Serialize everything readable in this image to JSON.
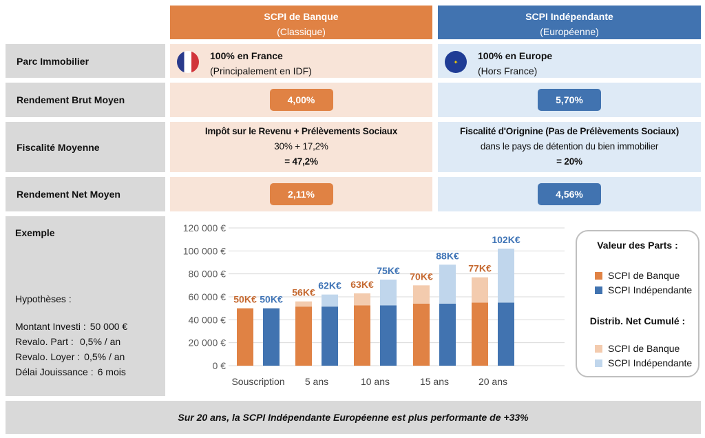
{
  "columns": [
    {
      "title": "SCPI de Banque",
      "subtitle": "(Classique)"
    },
    {
      "title": "SCPI Indépendante",
      "subtitle": "(Européenne)"
    }
  ],
  "rows": {
    "parc": {
      "label": "Parc Immobilier",
      "banque": {
        "line1": "100% en France",
        "line2": "(Principalement en IDF)",
        "icon": "france-flag-icon"
      },
      "indep": {
        "line1": "100% en Europe",
        "line2": "(Hors France)",
        "icon": "eu-flag-icon"
      }
    },
    "brut": {
      "label": "Rendement Brut Moyen",
      "banque": "4,00%",
      "indep": "5,70%"
    },
    "fisc": {
      "label": "Fiscalité Moyenne",
      "banque": {
        "line1": "Impôt sur le Revenu + Prélèvements Sociaux",
        "line2": "30% + 17,2%",
        "line3": "= 47,2%"
      },
      "indep": {
        "line1": "Fiscalité d'Orignine (Pas de Prélèvements Sociaux)",
        "line2": "dans le pays de détention du bien immobilier",
        "line3": "= 20%"
      }
    },
    "net": {
      "label": "Rendement Net Moyen",
      "banque": "2,11%",
      "indep": "4,56%"
    }
  },
  "example": {
    "label": "Exemple",
    "hyp_title": "Hypothèses :",
    "hyps": [
      {
        "k": "Montant Investi :",
        "v": "50 000 €"
      },
      {
        "k": "Revalo. Part :",
        "v": "0,5% / an"
      },
      {
        "k": "Revalo. Loyer :",
        "v": "0,5% / an"
      },
      {
        "k": "Délai Jouissance :",
        "v": "6 mois"
      }
    ]
  },
  "legend": {
    "title1": "Valeur des Parts :",
    "title2": "Distrib. Net Cumulé :",
    "items1": [
      "SCPI de Banque",
      "SCPI Indépendante"
    ],
    "items2": [
      "SCPI de Banque",
      "SCPI Indépendante"
    ]
  },
  "footer": "Sur 20 ans, la SCPI Indépendante Européenne est plus performante de +33%",
  "colors": {
    "orange": "#e08244",
    "blue": "#4173b0",
    "light_orange": "#f3cbae",
    "light_blue": "#c0d6ec"
  },
  "chart_data": {
    "type": "bar",
    "stacked": true,
    "categories": [
      "Souscription",
      "5 ans",
      "10 ans",
      "15 ans",
      "20 ans"
    ],
    "ylim": [
      0,
      120000
    ],
    "yticks": [
      0,
      20000,
      40000,
      60000,
      80000,
      100000,
      120000
    ],
    "ytick_labels": [
      "0 €",
      "20 000 €",
      "40 000 €",
      "60 000 €",
      "80 000 €",
      "100 000 €",
      "120 000 €"
    ],
    "series": [
      {
        "name": "SCPI de Banque - Valeur des Parts",
        "group": "banque",
        "values": [
          50000,
          51500,
          52500,
          54000,
          55000
        ]
      },
      {
        "name": "SCPI de Banque - Distrib. Net Cumulé",
        "group": "banque",
        "values": [
          0,
          4500,
          10500,
          16000,
          22000
        ]
      },
      {
        "name": "SCPI Indépendante - Valeur des Parts",
        "group": "indep",
        "values": [
          50000,
          51500,
          52500,
          54000,
          55000
        ]
      },
      {
        "name": "SCPI Indépendante - Distrib. Net Cumulé",
        "group": "indep",
        "values": [
          0,
          10500,
          22500,
          34000,
          47000
        ]
      }
    ],
    "data_labels": {
      "banque": [
        "50K€",
        "56K€",
        "63K€",
        "70K€",
        "77K€"
      ],
      "indep": [
        "50K€",
        "62K€",
        "75K€",
        "88K€",
        "102K€"
      ]
    },
    "grid": true,
    "legend": "right"
  }
}
